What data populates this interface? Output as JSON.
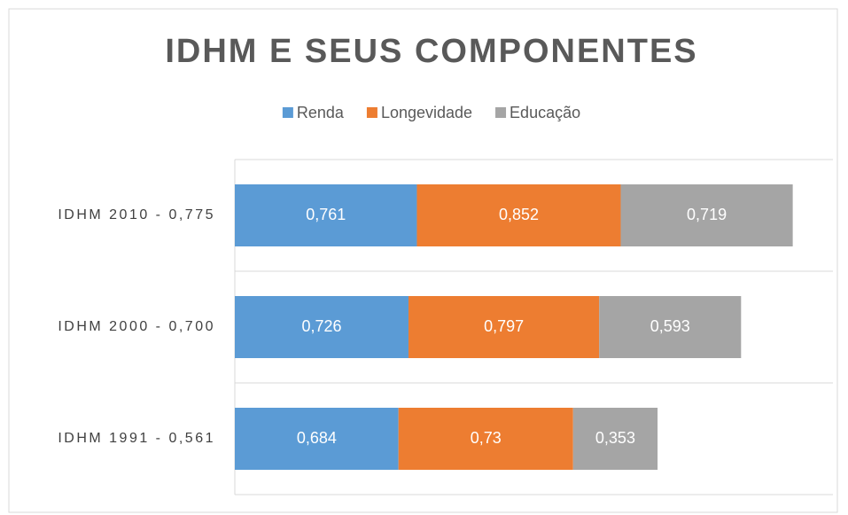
{
  "chart_data": {
    "type": "stacked-barh",
    "title": "IDHM E SEUS COMPONENTES",
    "categories": [
      "IDHM 2010 - 0,775",
      "IDHM 2000 - 0,700",
      "IDHM 1991 - 0,561"
    ],
    "series": [
      {
        "name": "Renda",
        "color": "#5b9bd5",
        "values": [
          0.761,
          0.726,
          0.684
        ],
        "value_labels": [
          "0,761",
          "0,726",
          "0,684"
        ]
      },
      {
        "name": "Longevidade",
        "color": "#ed7d31",
        "values": [
          0.852,
          0.797,
          0.73
        ],
        "value_labels": [
          "0,852",
          "0,797",
          "0,73"
        ]
      },
      {
        "name": "Educação",
        "color": "#a5a5a5",
        "values": [
          0.719,
          0.593,
          0.353
        ],
        "value_labels": [
          "0,719",
          "0,593",
          "0,353"
        ]
      }
    ],
    "xlim": [
      0,
      2.5
    ],
    "legend": "top"
  }
}
